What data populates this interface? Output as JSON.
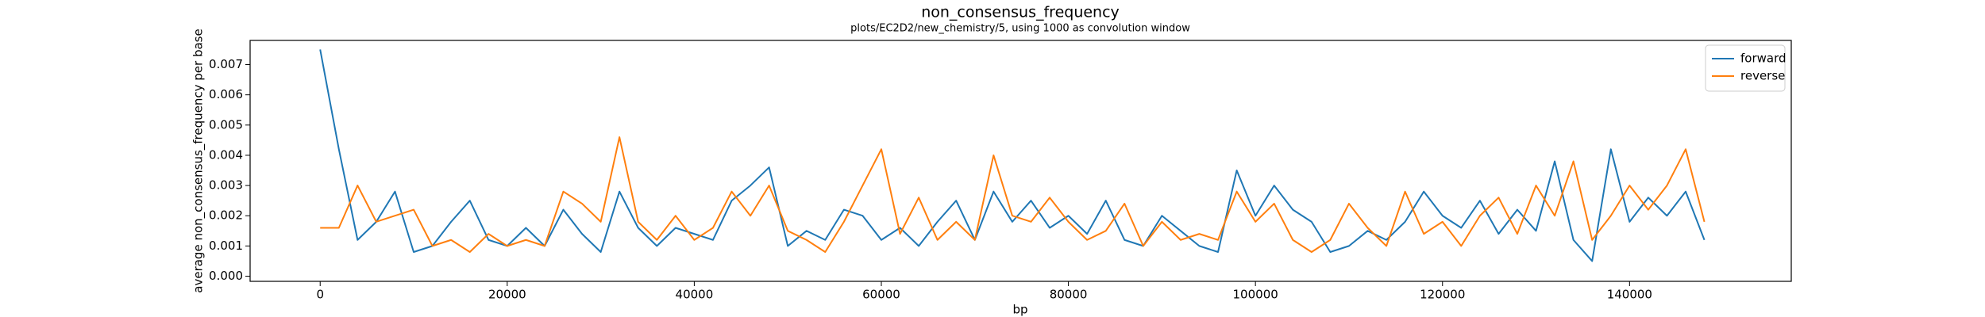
{
  "chart_data": {
    "type": "line",
    "title": "non_consensus_frequency",
    "subtitle": "plots/EC2D2/new_chemistry/5, using 1000 as convolution window",
    "xlabel": "bp",
    "ylabel": "average non_consensus_frequency per base",
    "x": [
      0,
      2000,
      4000,
      6000,
      8000,
      10000,
      12000,
      14000,
      16000,
      18000,
      20000,
      22000,
      24000,
      26000,
      28000,
      30000,
      32000,
      34000,
      36000,
      38000,
      40000,
      42000,
      44000,
      46000,
      48000,
      50000,
      52000,
      54000,
      56000,
      58000,
      60000,
      62000,
      64000,
      66000,
      68000,
      70000,
      72000,
      74000,
      76000,
      78000,
      80000,
      82000,
      84000,
      86000,
      88000,
      90000,
      92000,
      94000,
      96000,
      98000,
      100000,
      102000,
      104000,
      106000,
      108000,
      110000,
      112000,
      114000,
      116000,
      118000,
      120000,
      122000,
      124000,
      126000,
      128000,
      130000,
      132000,
      134000,
      136000,
      138000,
      140000,
      142000,
      144000,
      146000,
      148000
    ],
    "series": [
      {
        "name": "forward",
        "color": "#1f77b4",
        "values": [
          0.0075,
          0.0042,
          0.0012,
          0.0018,
          0.0028,
          0.0008,
          0.001,
          0.0018,
          0.0025,
          0.0012,
          0.001,
          0.0016,
          0.001,
          0.0022,
          0.0014,
          0.0008,
          0.0028,
          0.0016,
          0.001,
          0.0016,
          0.0014,
          0.0012,
          0.0025,
          0.003,
          0.0036,
          0.001,
          0.0015,
          0.0012,
          0.0022,
          0.002,
          0.0012,
          0.0016,
          0.001,
          0.0018,
          0.0025,
          0.0012,
          0.0028,
          0.0018,
          0.0025,
          0.0016,
          0.002,
          0.0014,
          0.0025,
          0.0012,
          0.001,
          0.002,
          0.0015,
          0.001,
          0.0008,
          0.0035,
          0.002,
          0.003,
          0.0022,
          0.0018,
          0.0008,
          0.001,
          0.0015,
          0.0012,
          0.0018,
          0.0028,
          0.002,
          0.0016,
          0.0025,
          0.0014,
          0.0022,
          0.0015,
          0.0038,
          0.0012,
          0.0005,
          0.0042,
          0.0018,
          0.0026,
          0.002,
          0.0028,
          0.0012
        ]
      },
      {
        "name": "reverse",
        "color": "#ff7f0e",
        "values": [
          0.0016,
          0.0016,
          0.003,
          0.0018,
          0.002,
          0.0022,
          0.001,
          0.0012,
          0.0008,
          0.0014,
          0.001,
          0.0012,
          0.001,
          0.0028,
          0.0024,
          0.0018,
          0.0046,
          0.0018,
          0.0012,
          0.002,
          0.0012,
          0.0016,
          0.0028,
          0.002,
          0.003,
          0.0015,
          0.0012,
          0.0008,
          0.0018,
          0.003,
          0.0042,
          0.0014,
          0.0026,
          0.0012,
          0.0018,
          0.0012,
          0.004,
          0.002,
          0.0018,
          0.0026,
          0.0018,
          0.0012,
          0.0015,
          0.0024,
          0.001,
          0.0018,
          0.0012,
          0.0014,
          0.0012,
          0.0028,
          0.0018,
          0.0024,
          0.0012,
          0.0008,
          0.0012,
          0.0024,
          0.0016,
          0.001,
          0.0028,
          0.0014,
          0.0018,
          0.001,
          0.002,
          0.0026,
          0.0014,
          0.003,
          0.002,
          0.0038,
          0.0012,
          0.002,
          0.003,
          0.0022,
          0.003,
          0.0042,
          0.0018
        ]
      }
    ],
    "xlim": [
      -7490,
      157290
    ],
    "ylim": [
      -0.00017,
      0.0078
    ],
    "xticks": [
      0,
      20000,
      40000,
      60000,
      80000,
      100000,
      120000,
      140000
    ],
    "yticks": [
      {
        "value": 0,
        "label": "0.000"
      },
      0.001,
      0.002,
      0.003,
      0.004,
      0.005,
      0.006,
      0.007
    ],
    "legend": "upper right"
  }
}
